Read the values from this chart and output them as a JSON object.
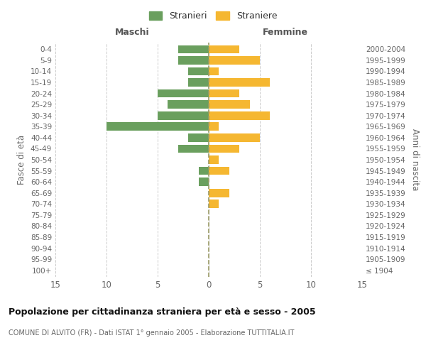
{
  "age_groups": [
    "100+",
    "95-99",
    "90-94",
    "85-89",
    "80-84",
    "75-79",
    "70-74",
    "65-69",
    "60-64",
    "55-59",
    "50-54",
    "45-49",
    "40-44",
    "35-39",
    "30-34",
    "25-29",
    "20-24",
    "15-19",
    "10-14",
    "5-9",
    "0-4"
  ],
  "birth_years": [
    "≤ 1904",
    "1905-1909",
    "1910-1914",
    "1915-1919",
    "1920-1924",
    "1925-1929",
    "1930-1934",
    "1935-1939",
    "1940-1944",
    "1945-1949",
    "1950-1954",
    "1955-1959",
    "1960-1964",
    "1965-1969",
    "1970-1974",
    "1975-1979",
    "1980-1984",
    "1985-1989",
    "1990-1994",
    "1995-1999",
    "2000-2004"
  ],
  "males": [
    0,
    0,
    0,
    0,
    0,
    0,
    0,
    0,
    1,
    1,
    0,
    3,
    2,
    10,
    5,
    4,
    5,
    2,
    2,
    3,
    3
  ],
  "females": [
    0,
    0,
    0,
    0,
    0,
    0,
    1,
    2,
    0,
    2,
    1,
    3,
    5,
    1,
    6,
    4,
    3,
    6,
    1,
    5,
    3
  ],
  "male_color": "#6a9f5e",
  "female_color": "#f5b731",
  "background_color": "#ffffff",
  "grid_color": "#cccccc",
  "title": "Popolazione per cittadinanza straniera per età e sesso - 2005",
  "subtitle": "COMUNE DI ALVITO (FR) - Dati ISTAT 1° gennaio 2005 - Elaborazione TUTTITALIA.IT",
  "xlabel_left": "Maschi",
  "xlabel_right": "Femmine",
  "ylabel_left": "Fasce di età",
  "ylabel_right": "Anni di nascita",
  "legend_male": "Stranieri",
  "legend_female": "Straniere",
  "xlim": 15,
  "bar_height": 0.75
}
